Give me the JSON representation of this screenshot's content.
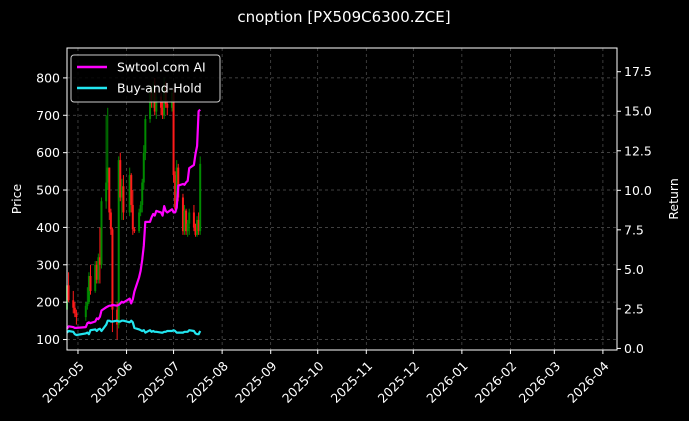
{
  "chart_data": {
    "type": "line",
    "title": "cnoption [PX509C6300.ZCE]",
    "ylabel_left": "Price",
    "ylabel_right": "Return",
    "grid": true,
    "legend_position": "top-left",
    "x_ticks": [
      "2025-05",
      "2025-06",
      "2025-07",
      "2025-08",
      "2025-09",
      "2025-10",
      "2025-11",
      "2025-12",
      "2026-01",
      "2026-02",
      "2026-03",
      "2026-04"
    ],
    "x_range": [
      "2025-04-24",
      "2026-04-10"
    ],
    "y_left_ticks": [
      100,
      200,
      300,
      400,
      500,
      600,
      700,
      800
    ],
    "y_left_range": [
      72,
      880
    ],
    "y_right_ticks": [
      "0.0",
      "2.5",
      "5.0",
      "7.5",
      "10.0",
      "12.5",
      "15.0",
      "17.5"
    ],
    "y_right_range": [
      -0.1,
      19.0
    ],
    "colors": {
      "background": "#000000",
      "strategy": "#ff00ff",
      "benchmark": "#22e6f0",
      "candle_up": "#008a00",
      "candle_down": "#ff1a1a",
      "grid": "#555555",
      "text": "#ffffff"
    },
    "series": [
      {
        "name": "Swtool.com AI",
        "axis": "right",
        "x": [
          "2025-04-24",
          "2025-04-25",
          "2025-04-28",
          "2025-04-29",
          "2025-04-30",
          "2025-05-06",
          "2025-05-07",
          "2025-05-08",
          "2025-05-09",
          "2025-05-12",
          "2025-05-13",
          "2025-05-14",
          "2025-05-15",
          "2025-05-16",
          "2025-05-19",
          "2025-05-20",
          "2025-05-21",
          "2025-05-22",
          "2025-05-23",
          "2025-05-26",
          "2025-05-27",
          "2025-05-28",
          "2025-05-29",
          "2025-05-30",
          "2025-06-03",
          "2025-06-04",
          "2025-06-05",
          "2025-06-06",
          "2025-06-09",
          "2025-06-10",
          "2025-06-11",
          "2025-06-12",
          "2025-06-13",
          "2025-06-16",
          "2025-06-17",
          "2025-06-18",
          "2025-06-19",
          "2025-06-20",
          "2025-06-23",
          "2025-06-24",
          "2025-06-25",
          "2025-06-26",
          "2025-06-27",
          "2025-06-30",
          "2025-07-01",
          "2025-07-02",
          "2025-07-03",
          "2025-07-04",
          "2025-07-07",
          "2025-07-08",
          "2025-07-09",
          "2025-07-10",
          "2025-07-11",
          "2025-07-14",
          "2025-07-15",
          "2025-07-16",
          "2025-07-17",
          "2025-07-18"
        ],
        "values": [
          1.25,
          1.4,
          1.35,
          1.3,
          1.3,
          1.35,
          1.6,
          1.65,
          1.6,
          1.7,
          1.9,
          1.85,
          2.0,
          2.4,
          2.6,
          2.65,
          2.7,
          2.7,
          2.75,
          2.7,
          2.75,
          2.85,
          2.95,
          2.9,
          3.15,
          2.85,
          3.1,
          3.6,
          4.5,
          4.9,
          5.6,
          6.5,
          8.0,
          8.0,
          8.3,
          8.5,
          8.4,
          8.7,
          8.6,
          8.4,
          9.0,
          8.7,
          8.6,
          8.8,
          8.6,
          8.6,
          8.9,
          10.3,
          10.4,
          10.35,
          10.5,
          10.6,
          11.4,
          11.6,
          12.3,
          12.8,
          15.0,
          15.1
        ]
      },
      {
        "name": "Buy-and-Hold",
        "axis": "right",
        "x": [
          "2025-04-24",
          "2025-04-25",
          "2025-04-28",
          "2025-04-29",
          "2025-04-30",
          "2025-05-06",
          "2025-05-07",
          "2025-05-08",
          "2025-05-09",
          "2025-05-12",
          "2025-05-13",
          "2025-05-14",
          "2025-05-15",
          "2025-05-16",
          "2025-05-19",
          "2025-05-20",
          "2025-05-21",
          "2025-05-22",
          "2025-05-23",
          "2025-05-26",
          "2025-05-27",
          "2025-05-28",
          "2025-05-29",
          "2025-05-30",
          "2025-06-03",
          "2025-06-04",
          "2025-06-05",
          "2025-06-06",
          "2025-06-09",
          "2025-06-10",
          "2025-06-11",
          "2025-06-12",
          "2025-06-13",
          "2025-06-16",
          "2025-06-17",
          "2025-06-18",
          "2025-06-19",
          "2025-06-20",
          "2025-06-23",
          "2025-06-24",
          "2025-06-25",
          "2025-06-26",
          "2025-06-27",
          "2025-06-30",
          "2025-07-01",
          "2025-07-02",
          "2025-07-03",
          "2025-07-04",
          "2025-07-07",
          "2025-07-08",
          "2025-07-09",
          "2025-07-10",
          "2025-07-11",
          "2025-07-14",
          "2025-07-15",
          "2025-07-16",
          "2025-07-17",
          "2025-07-18"
        ],
        "values": [
          1.0,
          1.1,
          1.05,
          0.9,
          0.85,
          0.95,
          1.0,
          0.9,
          1.15,
          1.2,
          1.1,
          1.2,
          1.25,
          1.1,
          1.5,
          1.75,
          1.75,
          1.7,
          1.7,
          1.75,
          1.7,
          1.7,
          1.75,
          1.75,
          1.65,
          1.75,
          1.65,
          1.3,
          1.2,
          1.15,
          1.1,
          1.15,
          1.0,
          1.15,
          1.05,
          1.1,
          1.05,
          1.05,
          1.0,
          1.0,
          1.05,
          1.05,
          1.1,
          1.1,
          1.15,
          1.1,
          1.0,
          1.0,
          1.0,
          1.05,
          1.05,
          1.05,
          1.15,
          1.1,
          0.95,
          0.9,
          0.9,
          1.1
        ]
      }
    ],
    "candles": {
      "axis": "left",
      "fields": [
        "date",
        "open",
        "high",
        "low",
        "close"
      ],
      "rows": [
        [
          "2025-04-24",
          180,
          255,
          150,
          245
        ],
        [
          "2025-04-25",
          245,
          280,
          200,
          205
        ],
        [
          "2025-04-28",
          205,
          230,
          170,
          185
        ],
        [
          "2025-04-29",
          185,
          200,
          160,
          170
        ],
        [
          "2025-04-30",
          170,
          180,
          140,
          160
        ],
        [
          "2025-05-06",
          160,
          200,
          150,
          190
        ],
        [
          "2025-05-07",
          190,
          240,
          180,
          200
        ],
        [
          "2025-05-08",
          200,
          280,
          195,
          270
        ],
        [
          "2025-05-09",
          270,
          300,
          220,
          230
        ],
        [
          "2025-05-12",
          230,
          310,
          225,
          300
        ],
        [
          "2025-05-13",
          300,
          310,
          250,
          260
        ],
        [
          "2025-05-14",
          260,
          330,
          250,
          320
        ],
        [
          "2025-05-15",
          320,
          400,
          250,
          300
        ],
        [
          "2025-05-16",
          300,
          480,
          290,
          470
        ],
        [
          "2025-05-19",
          470,
          700,
          450,
          520
        ],
        [
          "2025-05-20",
          520,
          720,
          500,
          560
        ],
        [
          "2025-05-21",
          560,
          560,
          420,
          440
        ],
        [
          "2025-05-22",
          440,
          450,
          380,
          395
        ],
        [
          "2025-05-23",
          395,
          400,
          120,
          180
        ],
        [
          "2025-05-26",
          180,
          200,
          100,
          140
        ],
        [
          "2025-05-27",
          140,
          590,
          130,
          580
        ],
        [
          "2025-05-28",
          580,
          600,
          470,
          480
        ],
        [
          "2025-05-29",
          480,
          530,
          420,
          510
        ],
        [
          "2025-05-30",
          510,
          540,
          420,
          440
        ],
        [
          "2025-06-03",
          440,
          560,
          430,
          540
        ],
        [
          "2025-06-04",
          540,
          545,
          440,
          460
        ],
        [
          "2025-06-05",
          460,
          500,
          380,
          395
        ],
        [
          "2025-06-06",
          395,
          400,
          385,
          390
        ],
        [
          "2025-06-09",
          390,
          450,
          385,
          440
        ],
        [
          "2025-06-10",
          440,
          470,
          430,
          460
        ],
        [
          "2025-06-11",
          460,
          530,
          440,
          520
        ],
        [
          "2025-06-12",
          520,
          620,
          500,
          600
        ],
        [
          "2025-06-13",
          600,
          700,
          580,
          690
        ],
        [
          "2025-06-16",
          690,
          780,
          680,
          760
        ],
        [
          "2025-06-17",
          760,
          770,
          720,
          740
        ],
        [
          "2025-06-18",
          740,
          790,
          720,
          770
        ],
        [
          "2025-06-19",
          770,
          800,
          700,
          710
        ],
        [
          "2025-06-20",
          710,
          760,
          690,
          750
        ],
        [
          "2025-06-23",
          750,
          760,
          700,
          720
        ],
        [
          "2025-06-24",
          720,
          740,
          690,
          700
        ],
        [
          "2025-06-25",
          700,
          800,
          690,
          780
        ],
        [
          "2025-06-26",
          780,
          790,
          720,
          730
        ],
        [
          "2025-06-27",
          730,
          740,
          700,
          720
        ],
        [
          "2025-06-30",
          720,
          770,
          710,
          760
        ],
        [
          "2025-07-01",
          760,
          770,
          520,
          540
        ],
        [
          "2025-07-02",
          540,
          550,
          440,
          450
        ],
        [
          "2025-07-03",
          450,
          580,
          440,
          560
        ],
        [
          "2025-07-04",
          560,
          570,
          470,
          480
        ],
        [
          "2025-07-07",
          480,
          490,
          380,
          390
        ],
        [
          "2025-07-08",
          390,
          460,
          380,
          445
        ],
        [
          "2025-07-09",
          445,
          450,
          380,
          390
        ],
        [
          "2025-07-10",
          390,
          420,
          375,
          410
        ],
        [
          "2025-07-11",
          410,
          450,
          380,
          440
        ],
        [
          "2025-07-14",
          440,
          460,
          390,
          400
        ],
        [
          "2025-07-15",
          400,
          410,
          375,
          380
        ],
        [
          "2025-07-16",
          380,
          430,
          375,
          420
        ],
        [
          "2025-07-17",
          420,
          440,
          380,
          390
        ],
        [
          "2025-07-18",
          390,
          590,
          380,
          570
        ]
      ]
    }
  }
}
